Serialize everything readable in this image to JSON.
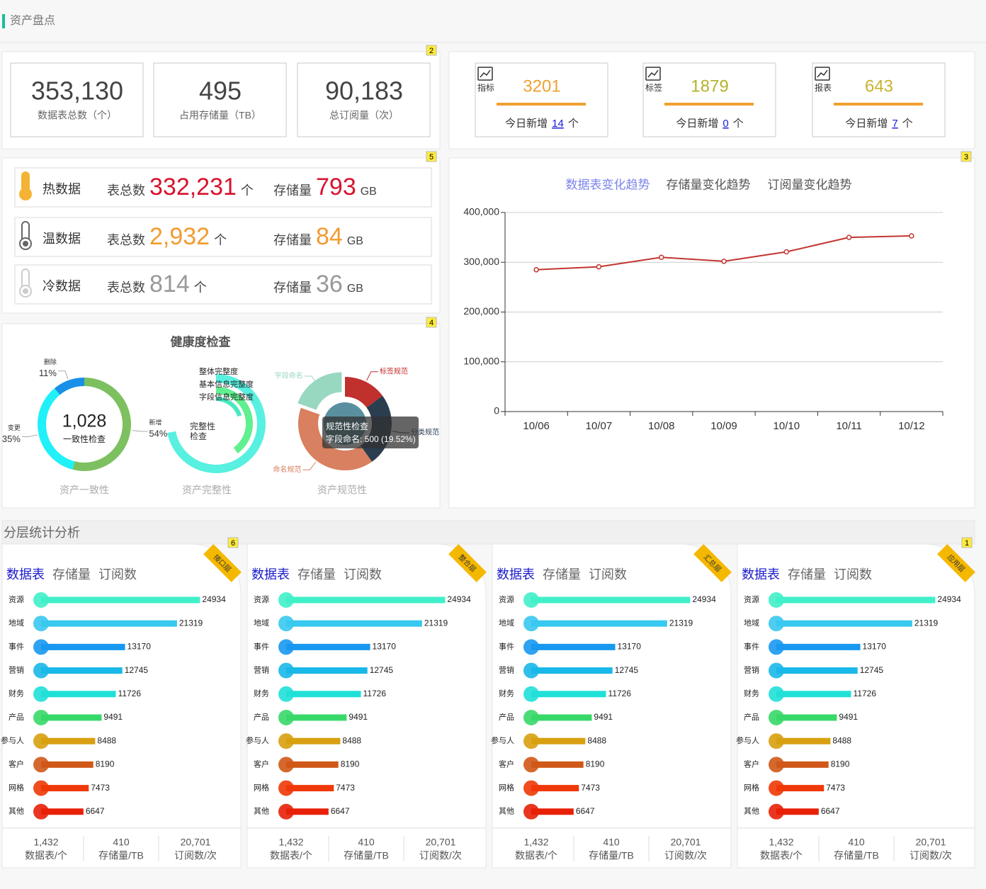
{
  "header": {
    "title": "资产盘点"
  },
  "badges": {
    "totals": "2",
    "temps": "5",
    "health": "4",
    "trend": "3"
  },
  "totals": [
    {
      "value": "353,130",
      "label": "数据表总数（个）"
    },
    {
      "value": "495",
      "label": "占用存储量（TB）"
    },
    {
      "value": "90,183",
      "label": "总订阅量（次）"
    }
  ],
  "assets": [
    {
      "icon_label": "指标",
      "count": "3201",
      "color": "#f0a030",
      "today": "今日新增",
      "new": "14",
      "unit": "个"
    },
    {
      "icon_label": "标签",
      "count": "1879",
      "color": "#b5b22a",
      "today": "今日新增",
      "new": "0",
      "unit": "个"
    },
    {
      "icon_label": "报表",
      "count": "643",
      "color": "#c9b233",
      "today": "今日新增",
      "new": "7",
      "unit": "个"
    }
  ],
  "temps": [
    {
      "name": "热数据",
      "tables_label": "表总数",
      "tables": "332,231",
      "tables_unit": "个",
      "storage_label": "存储量",
      "storage": "793",
      "storage_unit": "GB",
      "color": "#d7132e",
      "icon_color": "#f5b335"
    },
    {
      "name": "温数据",
      "tables_label": "表总数",
      "tables": "2,932",
      "tables_unit": "个",
      "storage_label": "存储量",
      "storage": "84",
      "storage_unit": "GB",
      "color": "#f29b2e",
      "icon_color": "#666666"
    },
    {
      "name": "冷数据",
      "tables_label": "表总数",
      "tables": "814",
      "tables_unit": "个",
      "storage_label": "存储量",
      "storage": "36",
      "storage_unit": "GB",
      "color": "#999999",
      "icon_color": "#cccccc"
    }
  ],
  "health": {
    "title": "健康度检查",
    "consistency": {
      "type": "donut",
      "center_value": "1,028",
      "center_label": "一致性检查",
      "caption": "资产一致性",
      "categories": [
        "新增",
        "变更",
        "删除"
      ],
      "values": [
        54,
        35,
        11
      ],
      "value_labels": [
        "54%",
        "35%",
        "11%"
      ],
      "colors": [
        "#7dc060",
        "#20f0f8",
        "#1890e8"
      ]
    },
    "completeness": {
      "type": "radial_bar",
      "center_label": [
        "完整性",
        "检查"
      ],
      "caption": "资产完整性",
      "categories": [
        "整体完整度",
        "基本信息完整度",
        "字段信息完整度"
      ],
      "values": [
        72,
        40,
        20
      ],
      "lim": [
        0,
        100
      ],
      "colors": [
        "#58f0e0",
        "#60f090",
        "#48e8c0"
      ]
    },
    "standard": {
      "type": "donut",
      "caption": "资产规范性",
      "categories": [
        "标签规范",
        "分类规范",
        "命名规范",
        "字段命名"
      ],
      "values": [
        380,
        650,
        1031,
        500
      ],
      "colors": [
        "#c0302c",
        "#2a3e50",
        "#d88060",
        "#98d8c0"
      ],
      "tooltip_title": "规范性检查",
      "tooltip_text": "字段命名: 500 (19.52%)"
    }
  },
  "trend": {
    "type": "line",
    "tabs": [
      "数据表变化趋势",
      "存储量变化趋势",
      "订阅量变化趋势"
    ],
    "active_tab": 0,
    "categories": [
      "10/06",
      "10/07",
      "10/08",
      "10/09",
      "10/10",
      "10/11",
      "10/12"
    ],
    "series": [
      {
        "color": "#c23531",
        "values": [
          285000,
          291000,
          310000,
          302000,
          321000,
          350000,
          353000
        ]
      }
    ],
    "ylim": [
      0,
      400000
    ],
    "yticks": [
      0,
      {
        "value": 100000,
        "label": "100,000"
      },
      {
        "value": 200000,
        "label": "200,000"
      },
      {
        "value": 300000,
        "label": "300,000"
      },
      {
        "value": 400000,
        "label": "400,000"
      }
    ],
    "grid": true
  },
  "layers": {
    "title": "分层统计分析",
    "panels": [
      {
        "ribbon": "接口层",
        "badge": "6",
        "tabs": [
          "数据表",
          "存储量",
          "订阅数"
        ],
        "chart": {
          "type": "bar",
          "categories": [
            "资源",
            "地域",
            "事件",
            "营销",
            "财务",
            "产品",
            "参与人",
            "客户",
            "网格",
            "其他"
          ],
          "values": [
            24934,
            21319,
            13170,
            12745,
            11726,
            9491,
            8488,
            8190,
            7473,
            6647
          ],
          "colors": [
            "#40f0c8",
            "#38c8f0",
            "#1898f0",
            "#18b8e8",
            "#20e0d8",
            "#38d868",
            "#d8a010",
            "#d05818",
            "#f03808",
            "#e82008"
          ],
          "xlim": [
            0,
            28000
          ]
        },
        "stats": [
          {
            "value": "1,432",
            "label": "数据表/个"
          },
          {
            "value": "410",
            "label": "存储量/TB"
          },
          {
            "value": "20,701",
            "label": "订阅数/次"
          }
        ]
      },
      {
        "ribbon": "整合层",
        "tabs": [
          "数据表",
          "存储量",
          "订阅数"
        ],
        "chart": {
          "type": "bar",
          "categories": [
            "资源",
            "地域",
            "事件",
            "营销",
            "财务",
            "产品",
            "参与人",
            "客户",
            "网格",
            "其他"
          ],
          "values": [
            24934,
            21319,
            13170,
            12745,
            11726,
            9491,
            8488,
            8190,
            7473,
            6647
          ],
          "colors": [
            "#40f0c8",
            "#38c8f0",
            "#1898f0",
            "#18b8e8",
            "#20e0d8",
            "#38d868",
            "#d8a010",
            "#d05818",
            "#f03808",
            "#e82008"
          ],
          "xlim": [
            0,
            28000
          ]
        },
        "stats": [
          {
            "value": "1,432",
            "label": "数据表/个"
          },
          {
            "value": "410",
            "label": "存储量/TB"
          },
          {
            "value": "20,701",
            "label": "订阅数/次"
          }
        ]
      },
      {
        "ribbon": "汇总层",
        "tabs": [
          "数据表",
          "存储量",
          "订阅数"
        ],
        "chart": {
          "type": "bar",
          "categories": [
            "资源",
            "地域",
            "事件",
            "营销",
            "财务",
            "产品",
            "参与人",
            "客户",
            "网格",
            "其他"
          ],
          "values": [
            24934,
            21319,
            13170,
            12745,
            11726,
            9491,
            8488,
            8190,
            7473,
            6647
          ],
          "colors": [
            "#40f0c8",
            "#38c8f0",
            "#1898f0",
            "#18b8e8",
            "#20e0d8",
            "#38d868",
            "#d8a010",
            "#d05818",
            "#f03808",
            "#e82008"
          ],
          "xlim": [
            0,
            28000
          ]
        },
        "stats": [
          {
            "value": "1,432",
            "label": "数据表/个"
          },
          {
            "value": "410",
            "label": "存储量/TB"
          },
          {
            "value": "20,701",
            "label": "订阅数/次"
          }
        ]
      },
      {
        "ribbon": "应用层",
        "badge": "1",
        "tabs": [
          "数据表",
          "存储量",
          "订阅数"
        ],
        "chart": {
          "type": "bar",
          "categories": [
            "资源",
            "地域",
            "事件",
            "营销",
            "财务",
            "产品",
            "参与人",
            "客户",
            "网格",
            "其他"
          ],
          "values": [
            24934,
            21319,
            13170,
            12745,
            11726,
            9491,
            8488,
            8190,
            7473,
            6647
          ],
          "colors": [
            "#40f0c8",
            "#38c8f0",
            "#1898f0",
            "#18b8e8",
            "#20e0d8",
            "#38d868",
            "#d8a010",
            "#d05818",
            "#f03808",
            "#e82008"
          ],
          "xlim": [
            0,
            28000
          ]
        },
        "stats": [
          {
            "value": "1,432",
            "label": "数据表/个"
          },
          {
            "value": "410",
            "label": "存储量/TB"
          },
          {
            "value": "20,701",
            "label": "订阅数/次"
          }
        ]
      }
    ]
  }
}
